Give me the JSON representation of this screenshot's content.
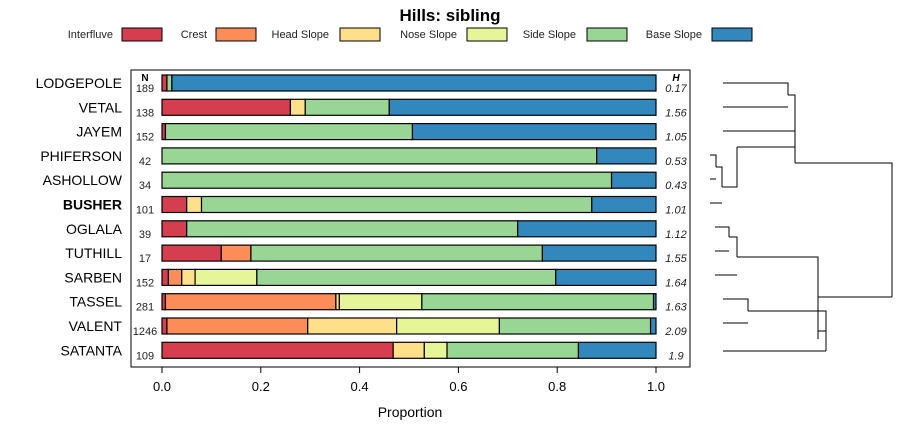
{
  "chart_data": {
    "type": "stacked-bar-horizontal",
    "title": "Hills: sibling",
    "xlabel": "Proportion",
    "xlim": [
      0,
      1
    ],
    "xticks": [
      "0.0",
      "0.2",
      "0.4",
      "0.6",
      "0.8",
      "1.0"
    ],
    "n_header": "N",
    "h_header": "H",
    "legend": [
      {
        "name": "Interfluve",
        "color": "#D53E4F"
      },
      {
        "name": "Crest",
        "color": "#FC8D59"
      },
      {
        "name": "Head Slope",
        "color": "#FEE08B"
      },
      {
        "name": "Nose Slope",
        "color": "#E6F598"
      },
      {
        "name": "Side Slope",
        "color": "#99D594"
      },
      {
        "name": "Base Slope",
        "color": "#3288BD"
      }
    ],
    "rows": [
      {
        "name": "LODGEPOLE",
        "n": "189",
        "h": "0.17",
        "bold": false,
        "values": [
          0.01,
          0.0,
          0.0,
          0.0,
          0.01,
          0.98
        ]
      },
      {
        "name": "VETAL",
        "n": "138",
        "h": "1.56",
        "bold": false,
        "values": [
          0.26,
          0.0,
          0.03,
          0.0,
          0.17,
          0.54
        ]
      },
      {
        "name": "JAYEM",
        "n": "152",
        "h": "1.05",
        "bold": false,
        "values": [
          0.007,
          0.0,
          0.0,
          0.0,
          0.5,
          0.493
        ]
      },
      {
        "name": "PHIFERSON",
        "n": "42",
        "h": "0.53",
        "bold": false,
        "values": [
          0.0,
          0.0,
          0.0,
          0.0,
          0.88,
          0.12
        ]
      },
      {
        "name": "ASHOLLOW",
        "n": "34",
        "h": "0.43",
        "bold": false,
        "values": [
          0.0,
          0.0,
          0.0,
          0.0,
          0.91,
          0.09
        ]
      },
      {
        "name": "BUSHER",
        "n": "101",
        "h": "1.01",
        "bold": true,
        "values": [
          0.05,
          0.0,
          0.03,
          0.0,
          0.79,
          0.13
        ]
      },
      {
        "name": "OGLALA",
        "n": "39",
        "h": "1.12",
        "bold": false,
        "values": [
          0.05,
          0.0,
          0.0,
          0.0,
          0.67,
          0.28
        ]
      },
      {
        "name": "TUTHILL",
        "n": "17",
        "h": "1.55",
        "bold": false,
        "values": [
          0.12,
          0.06,
          0.0,
          0.0,
          0.59,
          0.23
        ]
      },
      {
        "name": "SARBEN",
        "n": "152",
        "h": "1.64",
        "bold": false,
        "values": [
          0.013,
          0.027,
          0.027,
          0.125,
          0.605,
          0.203
        ]
      },
      {
        "name": "TASSEL",
        "n": "281",
        "h": "1.63",
        "bold": false,
        "values": [
          0.007,
          0.345,
          0.007,
          0.167,
          0.469,
          0.005
        ]
      },
      {
        "name": "VALENT",
        "n": "1246",
        "h": "2.09",
        "bold": false,
        "values": [
          0.01,
          0.285,
          0.18,
          0.208,
          0.306,
          0.011
        ]
      },
      {
        "name": "SATANTA",
        "n": "109",
        "h": "1.9",
        "bold": false,
        "values": [
          0.468,
          0.0,
          0.063,
          0.046,
          0.266,
          0.157
        ]
      }
    ],
    "dendrogram": "hierarchical clustering of the 12 series (right side)"
  }
}
